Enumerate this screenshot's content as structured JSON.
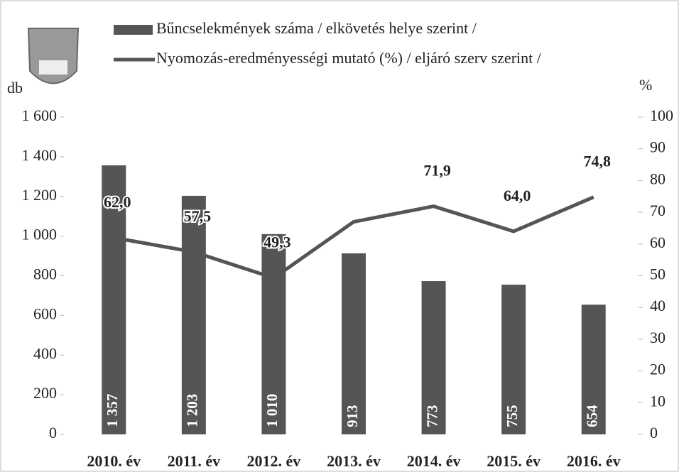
{
  "chart_data": {
    "type": "bar_line",
    "categories": [
      "2010. év",
      "2011. év",
      "2012. év",
      "2013. év",
      "2014. év",
      "2015. év",
      "2016. év"
    ],
    "series": [
      {
        "name": "Bűncselekmények száma / elkövetés helye szerint /",
        "type": "bar",
        "color": "#555555",
        "values": [
          1357,
          1203,
          1010,
          913,
          773,
          755,
          654
        ],
        "value_labels": [
          "1 357",
          "1 203",
          "1 010",
          "913",
          "773",
          "755",
          "654"
        ]
      },
      {
        "name": "Nyomozás-eredményességi mutató (%) / eljáró szerv szerint /",
        "type": "line",
        "axis": "y2",
        "color": "#555555",
        "values": [
          62.0,
          57.5,
          49.3,
          67,
          71.9,
          64.0,
          74.8
        ],
        "value_labels": [
          "62,0",
          "57,5",
          "49,3",
          null,
          "71,9",
          "64,0",
          "74,8"
        ]
      }
    ],
    "ylabel": "db",
    "y2label": "%",
    "ylim": [
      0,
      1600
    ],
    "yticks": [
      0,
      200,
      400,
      600,
      800,
      {
        "value": 1000,
        "label": "1 000"
      },
      {
        "value": 1200,
        "label": "1 200"
      },
      {
        "value": 1400,
        "label": "1 400"
      },
      {
        "value": 1600,
        "label": "1 600"
      }
    ],
    "y2lim": [
      0,
      100
    ],
    "y2ticks": [
      0,
      10,
      20,
      30,
      40,
      50,
      60,
      70,
      80,
      90,
      100
    ]
  }
}
